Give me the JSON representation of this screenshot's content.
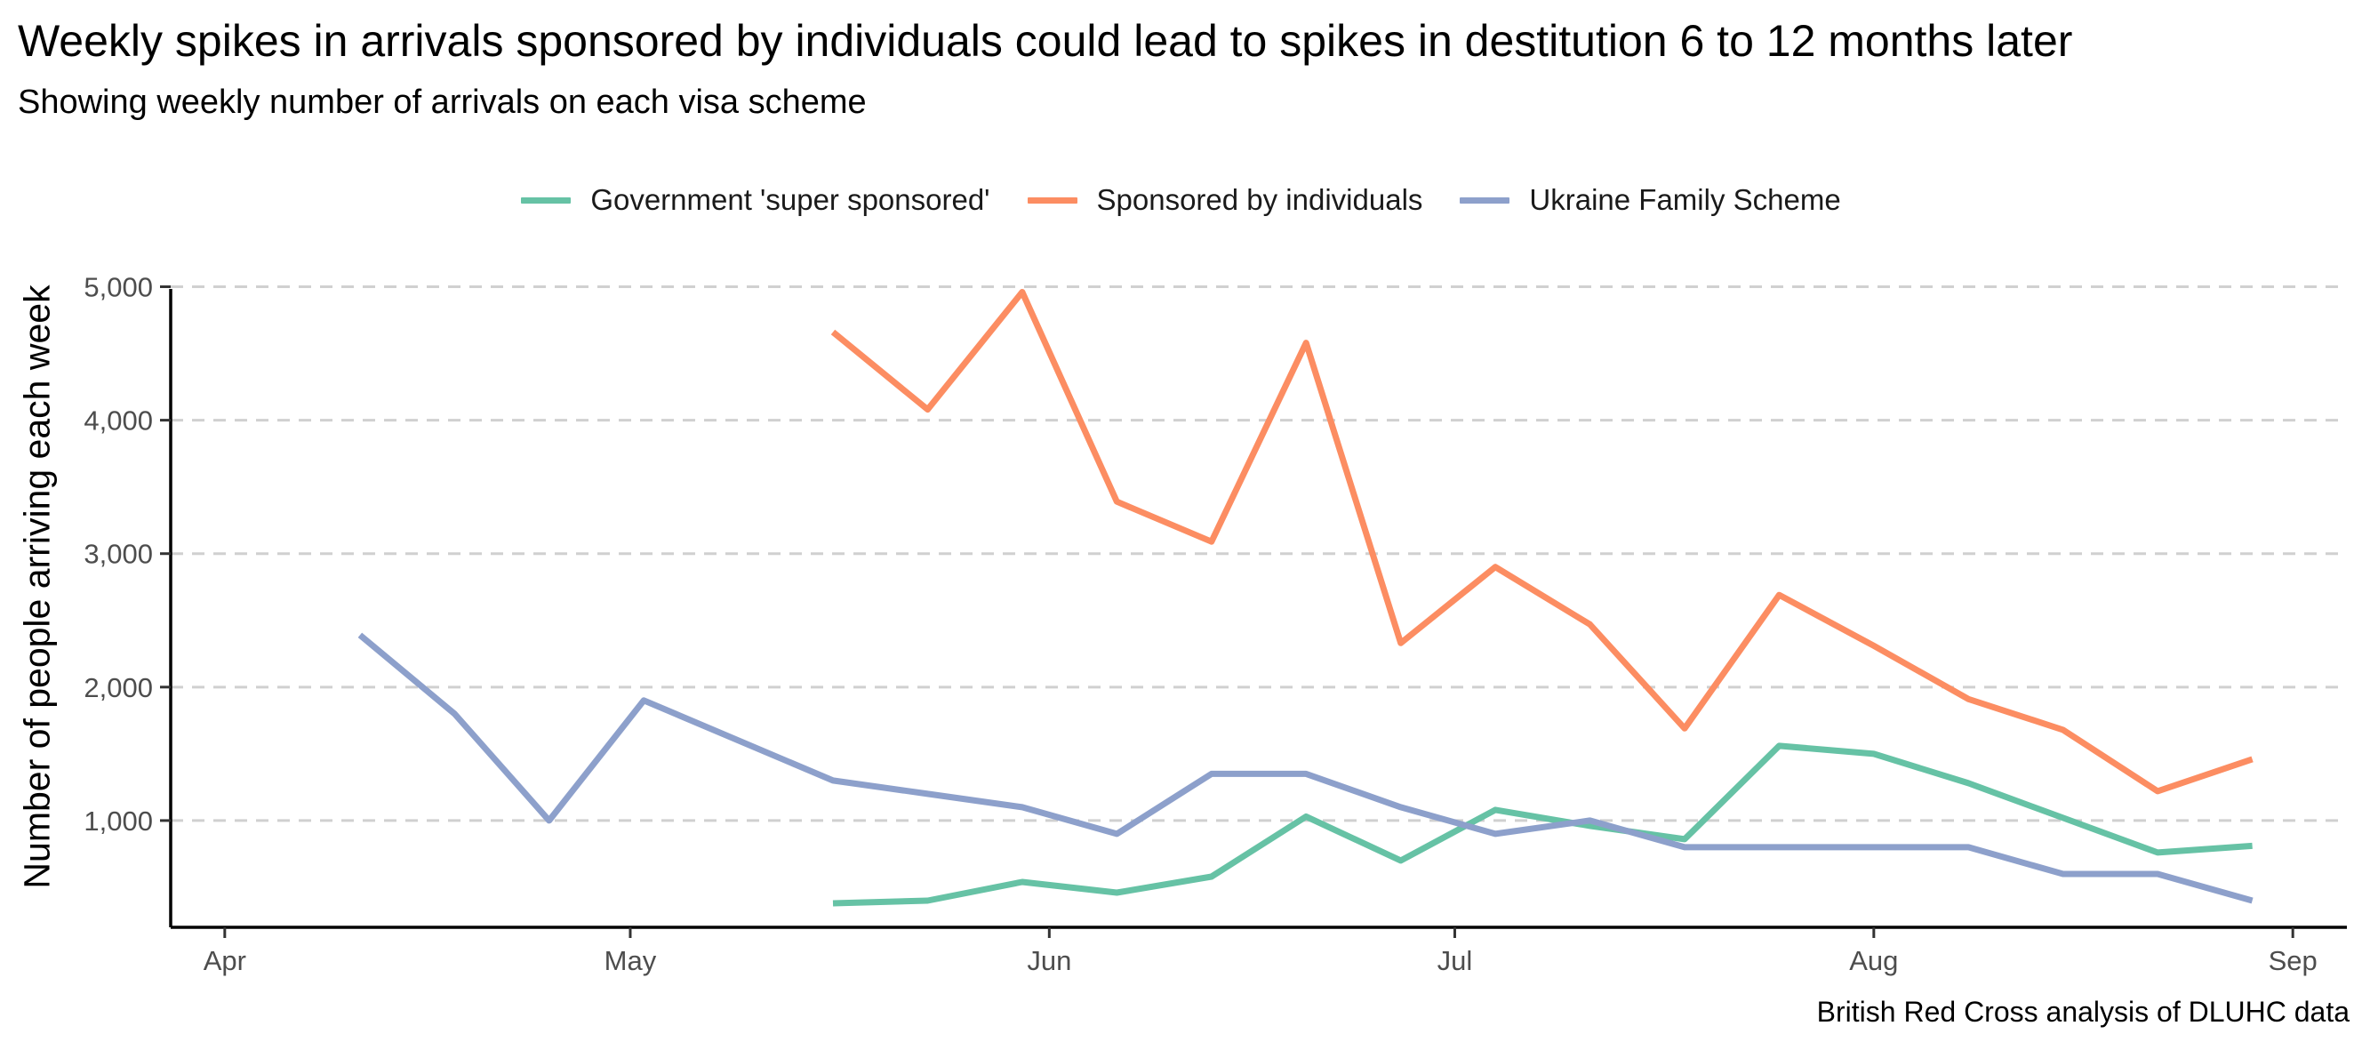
{
  "chart_data": {
    "type": "line",
    "title": "Weekly spikes in arrivals sponsored by individuals could lead to spikes in destitution 6 to 12 months later",
    "subtitle": "Showing weekly number of arrivals on each visa scheme",
    "ylabel": "Number of people arriving each week",
    "xlabel": "",
    "caption": "British Red Cross analysis of DLUHC data",
    "legend_position": "top",
    "grid": "horizontal dashed major gridlines",
    "x_axis": {
      "type": "date",
      "range": [
        "2022-03-28",
        "2022-09-05"
      ],
      "ticks": [
        "2022-04-01",
        "2022-05-01",
        "2022-06-01",
        "2022-07-01",
        "2022-08-01",
        "2022-09-01"
      ],
      "tick_labels": [
        "Apr",
        "May",
        "Jun",
        "Jul",
        "Aug",
        "Sep"
      ]
    },
    "y_axis": {
      "range": [
        200,
        5150
      ],
      "ticks": [
        1000,
        2000,
        3000,
        4000,
        5000
      ],
      "tick_labels": [
        "1,000",
        "2,000",
        "3,000",
        "4,000",
        "5,000"
      ]
    },
    "series": [
      {
        "name": "Government 'super sponsored'",
        "color": "#66c2a5",
        "points": [
          [
            "2022-05-16",
            380
          ],
          [
            "2022-05-23",
            400
          ],
          [
            "2022-05-30",
            540
          ],
          [
            "2022-06-06",
            460
          ],
          [
            "2022-06-13",
            580
          ],
          [
            "2022-06-20",
            1030
          ],
          [
            "2022-06-27",
            700
          ],
          [
            "2022-07-04",
            1080
          ],
          [
            "2022-07-11",
            960
          ],
          [
            "2022-07-18",
            860
          ],
          [
            "2022-07-25",
            1560
          ],
          [
            "2022-08-01",
            1500
          ],
          [
            "2022-08-08",
            1280
          ],
          [
            "2022-08-15",
            1020
          ],
          [
            "2022-08-22",
            760
          ],
          [
            "2022-08-29",
            810
          ]
        ]
      },
      {
        "name": "Sponsored by individuals",
        "color": "#fc8d62",
        "points": [
          [
            "2022-05-16",
            4660
          ],
          [
            "2022-05-23",
            4080
          ],
          [
            "2022-05-30",
            4960
          ],
          [
            "2022-06-06",
            3390
          ],
          [
            "2022-06-13",
            3090
          ],
          [
            "2022-06-20",
            4580
          ],
          [
            "2022-06-27",
            2330
          ],
          [
            "2022-07-04",
            2900
          ],
          [
            "2022-07-11",
            2470
          ],
          [
            "2022-07-18",
            1690
          ],
          [
            "2022-07-25",
            2690
          ],
          [
            "2022-08-01",
            2310
          ],
          [
            "2022-08-08",
            1910
          ],
          [
            "2022-08-15",
            1680
          ],
          [
            "2022-08-22",
            1220
          ],
          [
            "2022-08-29",
            1460
          ]
        ]
      },
      {
        "name": "Ukraine Family Scheme",
        "color": "#8da0cb",
        "points": [
          [
            "2022-04-11",
            2390
          ],
          [
            "2022-04-18",
            1800
          ],
          [
            "2022-04-25",
            1000
          ],
          [
            "2022-05-02",
            1900
          ],
          [
            "2022-05-16",
            1300
          ],
          [
            "2022-05-23",
            1200
          ],
          [
            "2022-05-30",
            1100
          ],
          [
            "2022-06-06",
            900
          ],
          [
            "2022-06-13",
            1350
          ],
          [
            "2022-06-20",
            1350
          ],
          [
            "2022-06-27",
            1100
          ],
          [
            "2022-07-04",
            900
          ],
          [
            "2022-07-11",
            1000
          ],
          [
            "2022-07-18",
            800
          ],
          [
            "2022-07-25",
            800
          ],
          [
            "2022-08-01",
            800
          ],
          [
            "2022-08-08",
            800
          ],
          [
            "2022-08-15",
            600
          ],
          [
            "2022-08-22",
            600
          ],
          [
            "2022-08-29",
            400
          ]
        ]
      }
    ]
  }
}
